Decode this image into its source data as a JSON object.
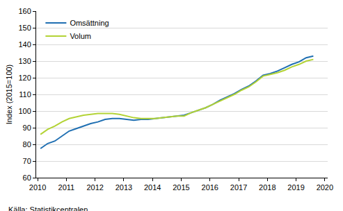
{
  "chart_data": {
    "type": "line",
    "y_label": "Index (2015=100)",
    "source": "Källa: Statistikcentralen",
    "x": [
      2010.1,
      2010.35,
      2010.6,
      2010.85,
      2011.1,
      2011.35,
      2011.6,
      2011.85,
      2012.1,
      2012.35,
      2012.6,
      2012.85,
      2013.1,
      2013.35,
      2013.6,
      2013.85,
      2014.1,
      2014.35,
      2014.6,
      2014.85,
      2015.1,
      2015.35,
      2015.6,
      2015.85,
      2016.1,
      2016.35,
      2016.6,
      2016.85,
      2017.1,
      2017.35,
      2017.6,
      2017.85,
      2018.1,
      2018.35,
      2018.6,
      2018.85,
      2019.1,
      2019.35,
      2019.6
    ],
    "series": [
      {
        "name": "Omsättning",
        "color": "#1f6fb2",
        "values": [
          77.5,
          80.5,
          82,
          85,
          88,
          89.5,
          91,
          92.5,
          93.5,
          95,
          95.5,
          95.5,
          95,
          94.5,
          95,
          95,
          95.5,
          96,
          96.5,
          97,
          97.5,
          99,
          100.5,
          102,
          104,
          106.5,
          108.5,
          110.5,
          113,
          115,
          118,
          121.5,
          122.5,
          124,
          126,
          128,
          129.5,
          132,
          133
        ]
      },
      {
        "name": "Volum",
        "color": "#b3d335",
        "values": [
          86,
          89,
          91,
          93.5,
          95.5,
          96.5,
          97.5,
          98,
          98.5,
          98.5,
          98.5,
          98,
          97,
          96,
          95.5,
          95.5,
          95.5,
          96,
          96.5,
          97,
          97,
          99,
          100.5,
          102,
          104,
          106,
          108,
          110,
          112.5,
          114.5,
          117.5,
          121,
          122,
          123,
          124.5,
          126.5,
          128,
          130,
          131
        ]
      }
    ],
    "xlim": [
      2009.95,
      2020.1
    ],
    "xticks": [
      2010,
      2011,
      2012,
      2013,
      2014,
      2015,
      2016,
      2017,
      2018,
      2019,
      2020
    ],
    "ylim": [
      60,
      160
    ],
    "yticks": [
      60,
      70,
      80,
      90,
      100,
      110,
      120,
      130,
      140,
      150,
      160
    ],
    "grid": true,
    "legend": "top-left"
  }
}
